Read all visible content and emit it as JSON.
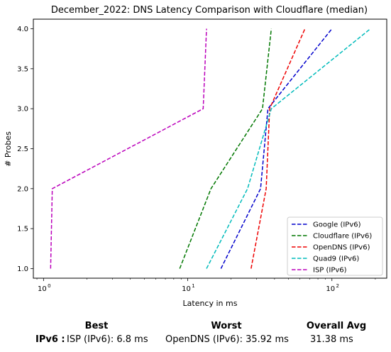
{
  "chart_data": {
    "type": "line",
    "title": "December_2022: DNS Latency Comparison with Cloudflare (median)",
    "xlabel": "Latency in ms",
    "ylabel": "# Probes",
    "x_scale": "log",
    "xlim": [
      0.85,
      240
    ],
    "ylim": [
      0.88,
      4.12
    ],
    "x_ticks": [
      {
        "value": 1,
        "label": "10",
        "exp": "0"
      },
      {
        "value": 10,
        "label": "10",
        "exp": "1"
      },
      {
        "value": 100,
        "label": "10",
        "exp": "2"
      }
    ],
    "y_ticks": [
      {
        "value": 1.0,
        "label": "1.0"
      },
      {
        "value": 1.5,
        "label": "1.5"
      },
      {
        "value": 2.0,
        "label": "2.0"
      },
      {
        "value": 2.5,
        "label": "2.5"
      },
      {
        "value": 3.0,
        "label": "3.0"
      },
      {
        "value": 3.5,
        "label": "3.5"
      },
      {
        "value": 4.0,
        "label": "4.0"
      }
    ],
    "grid": false,
    "legend_position": "lower right",
    "series": [
      {
        "name": "Google (IPv6)",
        "color": "#0000cc",
        "dash": "dashed",
        "points": [
          [
            17,
            1
          ],
          [
            32,
            2
          ],
          [
            36,
            3
          ],
          [
            100,
            4
          ]
        ]
      },
      {
        "name": "Cloudflare (IPv6)",
        "color": "#007700",
        "dash": "dashed",
        "points": [
          [
            8.8,
            1
          ],
          [
            14.5,
            2
          ],
          [
            33,
            3
          ],
          [
            38,
            4
          ]
        ]
      },
      {
        "name": "OpenDNS (IPv6)",
        "color": "#ee0000",
        "dash": "dashed",
        "points": [
          [
            27.5,
            1
          ],
          [
            35,
            2
          ],
          [
            37,
            3
          ],
          [
            65,
            4
          ]
        ]
      },
      {
        "name": "Quad9 (IPv6)",
        "color": "#00bbbb",
        "dash": "dashed",
        "points": [
          [
            13.5,
            1
          ],
          [
            26,
            2
          ],
          [
            38,
            3
          ],
          [
            185,
            4
          ]
        ]
      },
      {
        "name": "ISP (IPv6)",
        "color": "#bb00bb",
        "dash": "dashed",
        "points": [
          [
            1.12,
            1
          ],
          [
            1.15,
            2
          ],
          [
            12.8,
            3
          ],
          [
            13.5,
            4
          ]
        ]
      }
    ]
  },
  "summary": {
    "best_label": "Best",
    "worst_label": "Worst",
    "avg_label": "Overall Avg",
    "row_label": "IPv6 :",
    "best_value": "ISP (IPv6): 6.8 ms",
    "worst_value": "OpenDNS (IPv6): 35.92 ms",
    "avg_value": "31.38 ms"
  }
}
